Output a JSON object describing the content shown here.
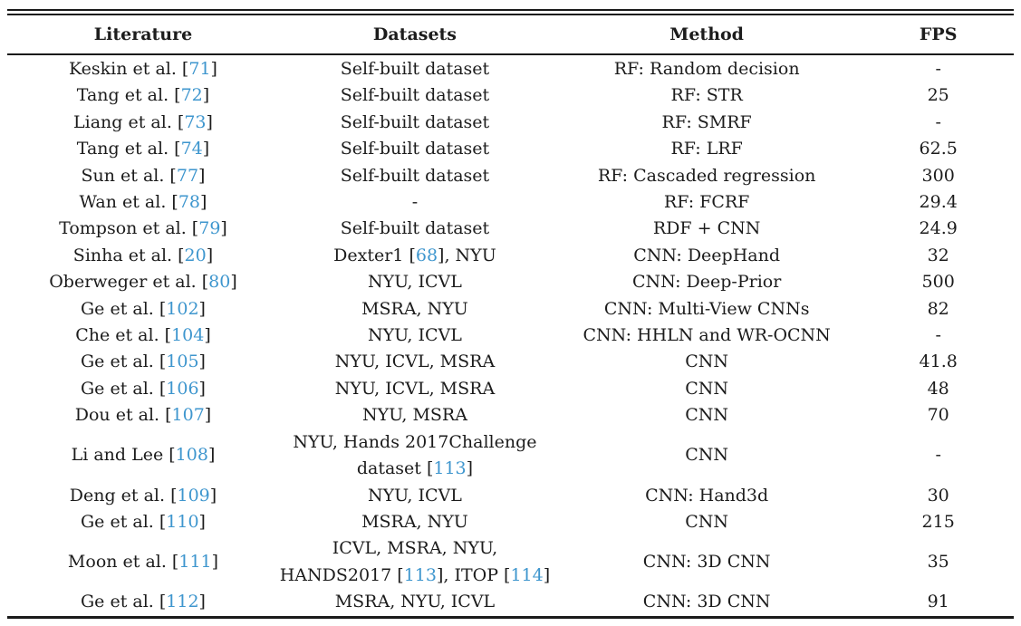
{
  "styles": {
    "citation_color": "#3E96CE",
    "text_color": "#1c1c1c",
    "rule_color": "#1a1a1a",
    "background": "#ffffff"
  },
  "table": {
    "headers": [
      "Literature",
      "Datasets",
      "Method",
      "FPS"
    ],
    "rows": [
      {
        "literature": "Keskin et al. [71]",
        "datasets": "Self-built dataset",
        "method": "RF: Random decision",
        "fps": "-"
      },
      {
        "literature": "Tang et al. [72]",
        "datasets": "Self-built dataset",
        "method": "RF: STR",
        "fps": "25"
      },
      {
        "literature": "Liang et al. [73]",
        "datasets": "Self-built dataset",
        "method": "RF: SMRF",
        "fps": "-"
      },
      {
        "literature": "Tang et al. [74]",
        "datasets": "Self-built dataset",
        "method": "RF: LRF",
        "fps": "62.5"
      },
      {
        "literature": "Sun et al. [77]",
        "datasets": "Self-built dataset",
        "method": "RF: Cascaded regression",
        "fps": "300"
      },
      {
        "literature": "Wan et al. [78]",
        "datasets": "-",
        "method": "RF: FCRF",
        "fps": "29.4"
      },
      {
        "literature": "Tompson et al. [79]",
        "datasets": "Self-built dataset",
        "method": "RDF + CNN",
        "fps": "24.9"
      },
      {
        "literature": "Sinha et al. [20]",
        "datasets": "Dexter1 [68], NYU",
        "method": "CNN: DeepHand",
        "fps": "32"
      },
      {
        "literature": "Oberweger et al. [80]",
        "datasets": "NYU, ICVL",
        "method": "CNN: Deep-Prior",
        "fps": "500"
      },
      {
        "literature": "Ge et al. [102]",
        "datasets": "MSRA, NYU",
        "method": "CNN: Multi-View CNNs",
        "fps": "82"
      },
      {
        "literature": "Che et al. [104]",
        "datasets": "NYU, ICVL",
        "method": "CNN: HHLN and WR-OCNN",
        "fps": "-"
      },
      {
        "literature": "Ge et al. [105]",
        "datasets": "NYU, ICVL, MSRA",
        "method": "CNN",
        "fps": "41.8"
      },
      {
        "literature": "Ge et al. [106]",
        "datasets": "NYU, ICVL, MSRA",
        "method": "CNN",
        "fps": "48"
      },
      {
        "literature": "Dou et al. [107]",
        "datasets": "NYU, MSRA",
        "method": "CNN",
        "fps": "70"
      },
      {
        "literature": "Li and Lee [108]",
        "datasets": "NYU, Hands 2017Challenge\ndataset [113]",
        "method": "CNN",
        "fps": "-"
      },
      {
        "literature": "Deng et al. [109]",
        "datasets": "NYU, ICVL",
        "method": "CNN: Hand3d",
        "fps": "30"
      },
      {
        "literature": "Ge et al. [110]",
        "datasets": "MSRA, NYU",
        "method": "CNN",
        "fps": "215"
      },
      {
        "literature": "Moon et al. [111]",
        "datasets": "ICVL, MSRA, NYU,\nHANDS2017 [113], ITOP [114]",
        "method": "CNN: 3D CNN",
        "fps": "35"
      },
      {
        "literature": "Ge et al. [112]",
        "datasets": "MSRA, NYU, ICVL",
        "method": "CNN: 3D CNN",
        "fps": "91"
      }
    ]
  }
}
